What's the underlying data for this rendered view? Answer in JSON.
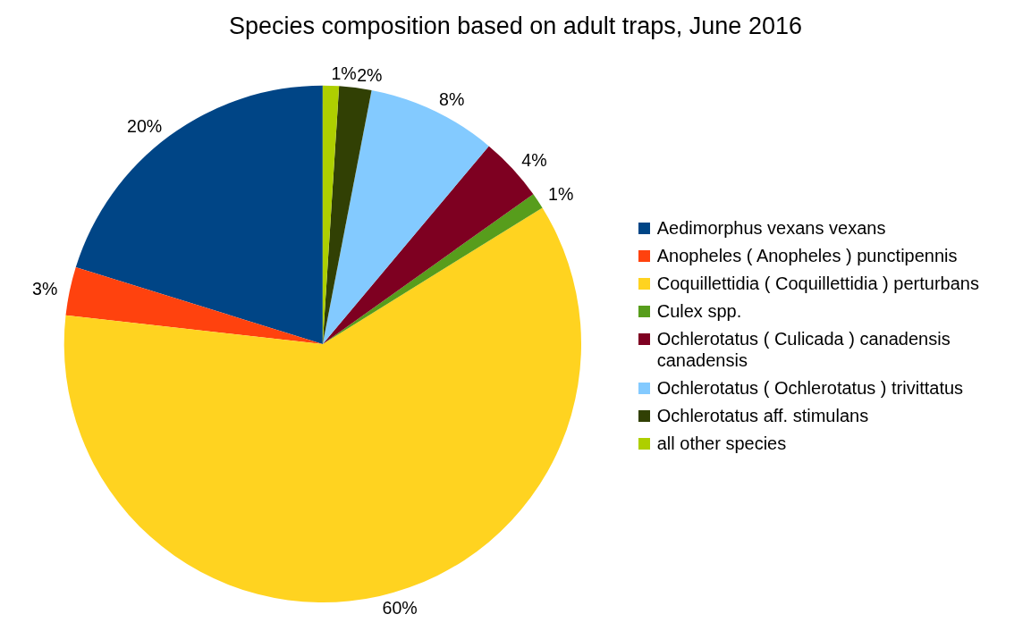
{
  "chart_data": {
    "type": "pie",
    "title": "Species composition based on adult traps, June 2016",
    "categories": [
      "Aedimorphus vexans vexans",
      "Anopheles ( Anopheles ) punctipennis",
      "Coquillettidia ( Coquillettidia ) perturbans",
      "Culex spp.",
      "Ochlerotatus ( Culicada ) canadensis canadensis",
      "Ochlerotatus ( Ochlerotatus ) trivittatus",
      "Ochlerotatus aff. stimulans",
      "all other species"
    ],
    "values": [
      20,
      3,
      60,
      1,
      4,
      8,
      2,
      1
    ],
    "value_labels": [
      "20%",
      "3%",
      "60%",
      "1%",
      "4%",
      "8%",
      "2%",
      "1%"
    ],
    "colors": [
      "#004586",
      "#ff420e",
      "#ffd320",
      "#579d1c",
      "#7e0021",
      "#83caff",
      "#314004",
      "#aecf00"
    ],
    "legend": "right"
  }
}
